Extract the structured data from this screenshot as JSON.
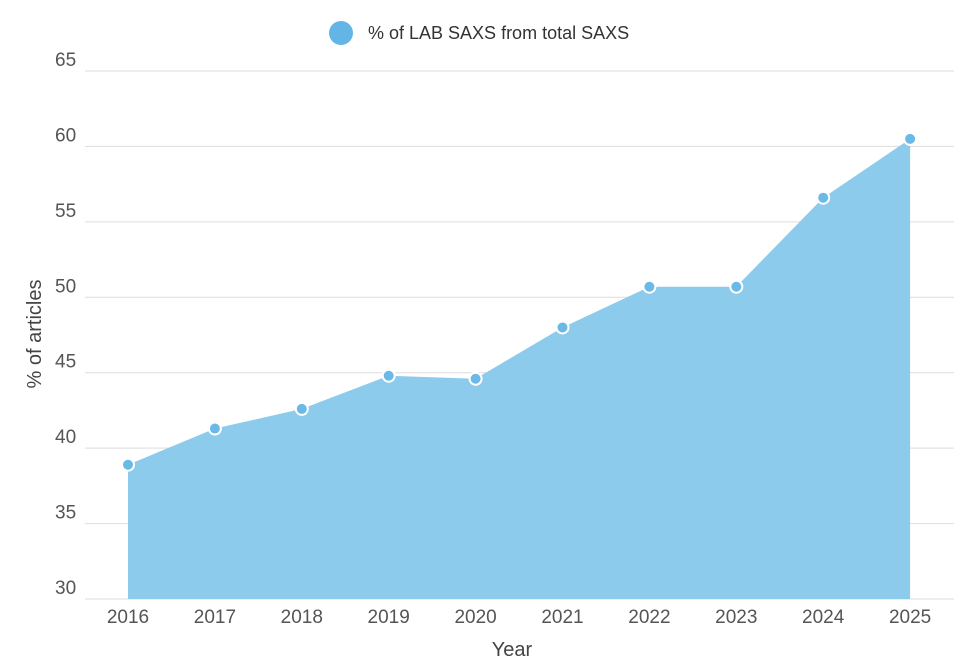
{
  "chart_data": {
    "type": "area",
    "legend": {
      "position": "top-center",
      "entries": [
        "% of LAB SAXS from total SAXS"
      ]
    },
    "xlabel": "Year",
    "ylabel": "% of articles",
    "categories": [
      "2016",
      "2017",
      "2018",
      "2019",
      "2020",
      "2021",
      "2022",
      "2023",
      "2024",
      "2025"
    ],
    "series": [
      {
        "name": "% of LAB SAXS from total SAXS",
        "values": [
          38.9,
          41.3,
          42.6,
          44.8,
          44.6,
          48.0,
          50.7,
          50.7,
          56.6,
          60.5
        ]
      }
    ],
    "ylim": [
      30,
      65
    ],
    "yticks": [
      30,
      35,
      40,
      45,
      50,
      55,
      60,
      65
    ],
    "grid": true,
    "colors": {
      "fill": "#8DCBEC",
      "point": "#6BB9E6",
      "point_stroke": "#ffffff",
      "grid": "#dddddd",
      "legend_marker": "#62B5E5"
    }
  }
}
